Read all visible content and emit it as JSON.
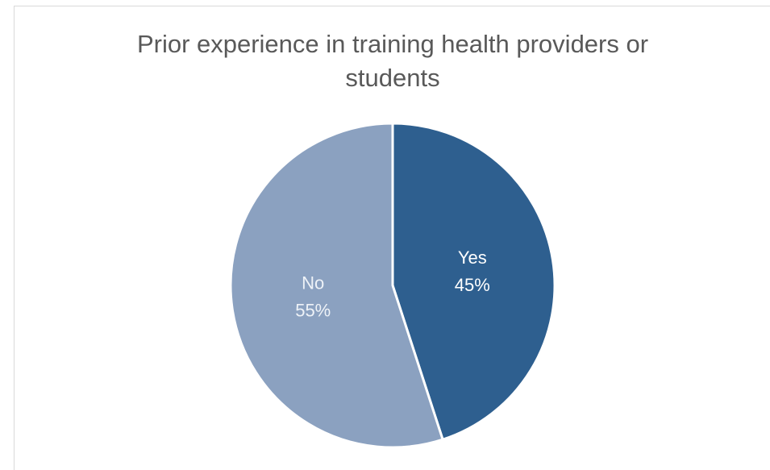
{
  "chart_data": {
    "type": "pie",
    "title": "Prior experience in training health providers or students",
    "categories": [
      "Yes",
      "No"
    ],
    "values": [
      45,
      55
    ],
    "value_labels": [
      "45%",
      "55%"
    ],
    "colors": [
      "#2e5f8f",
      "#8ba1c0"
    ]
  }
}
